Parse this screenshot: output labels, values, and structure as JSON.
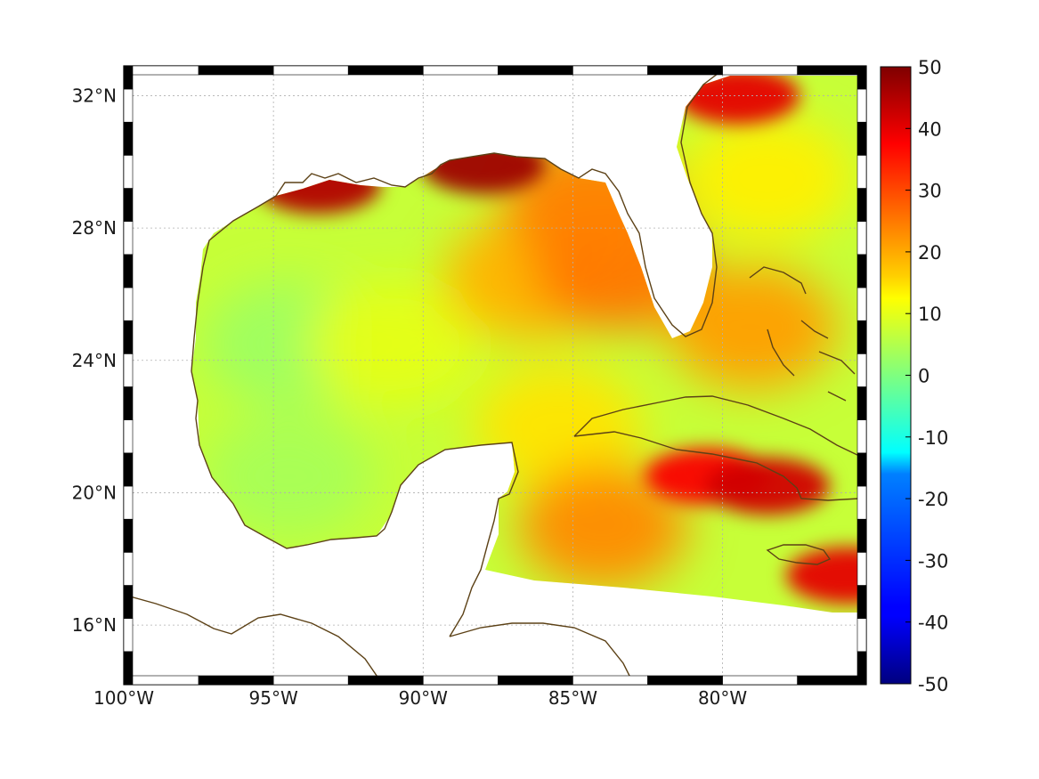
{
  "map": {
    "lon_range": [
      -100,
      -75.2
    ],
    "lat_range": [
      14.2,
      32.9
    ],
    "lon_ticks": [
      {
        "value": -100,
        "label": "100°W"
      },
      {
        "value": -95,
        "label": "95°W"
      },
      {
        "value": -90,
        "label": "90°W"
      },
      {
        "value": -85,
        "label": "85°W"
      },
      {
        "value": -80,
        "label": "80°W"
      }
    ],
    "lat_ticks": [
      {
        "value": 16,
        "label": "16°N"
      },
      {
        "value": 20,
        "label": "20°N"
      },
      {
        "value": 24,
        "label": "24°N"
      },
      {
        "value": 28,
        "label": "28°N"
      },
      {
        "value": 32,
        "label": "32°N"
      }
    ],
    "grid": true,
    "coastline_color": "#5c4116",
    "frame_colors": [
      "#000000",
      "#ffffff"
    ]
  },
  "colorbar": {
    "colormap": "jet",
    "range": [
      -50,
      50
    ],
    "ticks": [
      {
        "value": 50,
        "label": "50"
      },
      {
        "value": 40,
        "label": "40"
      },
      {
        "value": 30,
        "label": "30"
      },
      {
        "value": 20,
        "label": "20"
      },
      {
        "value": 10,
        "label": "10"
      },
      {
        "value": 0,
        "label": "0"
      },
      {
        "value": -10,
        "label": "-10"
      },
      {
        "value": -20,
        "label": "-20"
      },
      {
        "value": -30,
        "label": "-30"
      },
      {
        "value": -40,
        "label": "-40"
      },
      {
        "value": -50,
        "label": "-50"
      }
    ]
  },
  "field": {
    "background_value": 7,
    "features": [
      {
        "name": "western-gulf",
        "lon": -94.5,
        "lat": 24.5,
        "value": 3
      },
      {
        "name": "bay-of-campeche",
        "lon": -94.5,
        "lat": 20.5,
        "value": 4
      },
      {
        "name": "central-gulf",
        "lon": -91.0,
        "lat": 24.5,
        "value": 10
      },
      {
        "name": "eastern-gulf",
        "lon": -86.5,
        "lat": 26.5,
        "value": 20
      },
      {
        "name": "florida-west-shelf",
        "lon": -83.5,
        "lat": 26.8,
        "value": 26
      },
      {
        "name": "apalachicola",
        "lon": -84.5,
        "lat": 28.8,
        "value": 25
      },
      {
        "name": "louisiana-shelf",
        "lon": -93.5,
        "lat": 29.3,
        "value": 45
      },
      {
        "name": "mississippi-shelf",
        "lon": -88.0,
        "lat": 29.9,
        "value": 47
      },
      {
        "name": "yucatan-channel",
        "lon": -85.5,
        "lat": 22.0,
        "value": 15
      },
      {
        "name": "cayman-basin",
        "lon": -80.5,
        "lat": 20.5,
        "value": 38
      },
      {
        "name": "south-cuba",
        "lon": -78.5,
        "lat": 20.2,
        "value": 42
      },
      {
        "name": "jamaica-east",
        "lon": -75.8,
        "lat": 17.5,
        "value": 40
      },
      {
        "name": "northwest-caribbean",
        "lon": -84.0,
        "lat": 19.0,
        "value": 24
      },
      {
        "name": "atlantic-north",
        "lon": -79.5,
        "lat": 32.0,
        "value": 40
      },
      {
        "name": "atlantic-shelf",
        "lon": -78.5,
        "lat": 29.5,
        "value": 14
      },
      {
        "name": "bahamas",
        "lon": -79.0,
        "lat": 25.0,
        "value": 22
      }
    ]
  }
}
